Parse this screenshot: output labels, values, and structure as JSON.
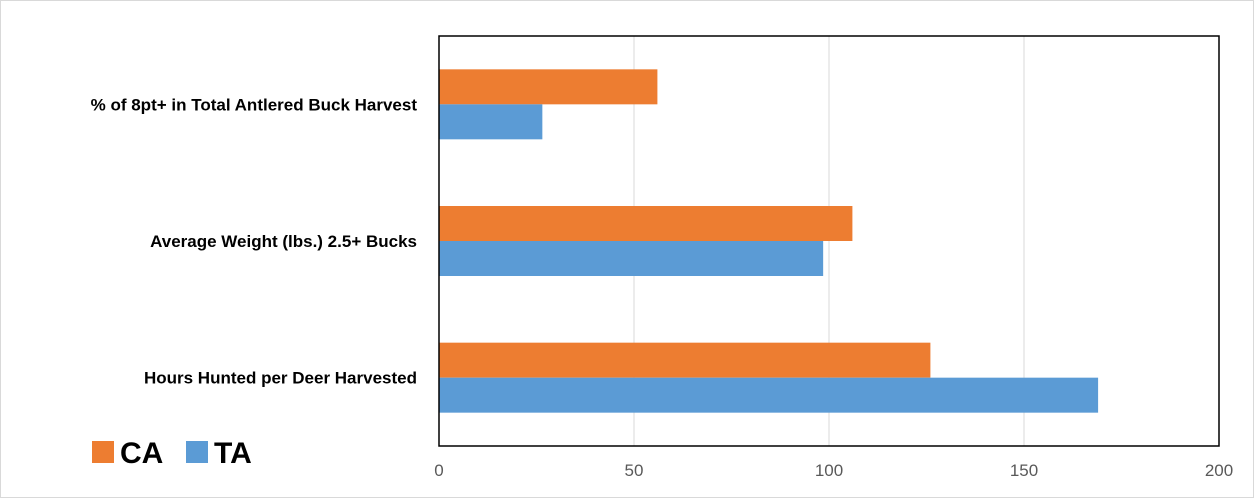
{
  "chart_data": {
    "type": "bar",
    "orientation": "horizontal",
    "categories": [
      "% of 8pt+ in Total Antlered Buck Harvest",
      "Average Weight (lbs.) 2.5+ Bucks",
      "Hours Hunted per Deer Harvested"
    ],
    "series": [
      {
        "name": "CA",
        "color": "#ED7D31",
        "values": [
          56,
          106,
          126
        ]
      },
      {
        "name": "TA",
        "color": "#5B9BD5",
        "values": [
          26.5,
          98.5,
          169
        ]
      }
    ],
    "xlim": [
      0,
      200
    ],
    "xticks": [
      0,
      50,
      100,
      150,
      200
    ],
    "grid": true,
    "legend_position": "bottom-left",
    "title": "",
    "xlabel": "",
    "ylabel": ""
  }
}
